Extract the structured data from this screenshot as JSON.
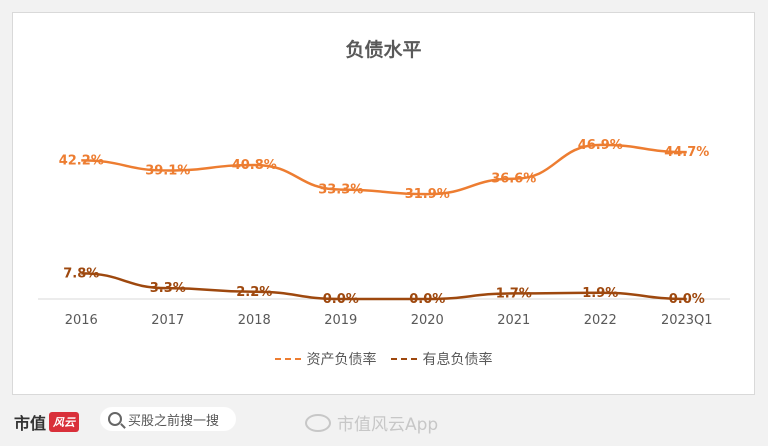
{
  "footer": {
    "brand_text": "市值",
    "brand_logo_text": "风云",
    "search_placeholder": "买股之前搜一搜",
    "watermark_text": "市值风云App"
  },
  "background_watermark": "市值风云",
  "colors": {
    "series1": "#ed7d31",
    "series2": "#9e480e",
    "axis": "#d9d9d9",
    "text": "#595959"
  },
  "chart_data": {
    "type": "line",
    "title": "负债水平",
    "categories": [
      "2016",
      "2017",
      "2018",
      "2019",
      "2020",
      "2021",
      "2022",
      "2023Q1"
    ],
    "series": [
      {
        "name": "资产负债率",
        "values": [
          42.2,
          39.1,
          40.8,
          33.3,
          31.9,
          36.6,
          46.9,
          44.7
        ],
        "labels": [
          "42.2%",
          "39.1%",
          "40.8%",
          "33.3%",
          "31.9%",
          "36.6%",
          "46.9%",
          "44.7%"
        ]
      },
      {
        "name": "有息负债率",
        "values": [
          7.8,
          3.3,
          2.2,
          0.0,
          0.0,
          1.7,
          1.9,
          0.0
        ],
        "labels": [
          "7.8%",
          "3.3%",
          "2.2%",
          "0.0%",
          "0.0%",
          "1.7%",
          "1.9%",
          "0.0%"
        ]
      }
    ],
    "ylim": [
      0,
      70
    ],
    "grid": false,
    "legend": "bottom"
  }
}
